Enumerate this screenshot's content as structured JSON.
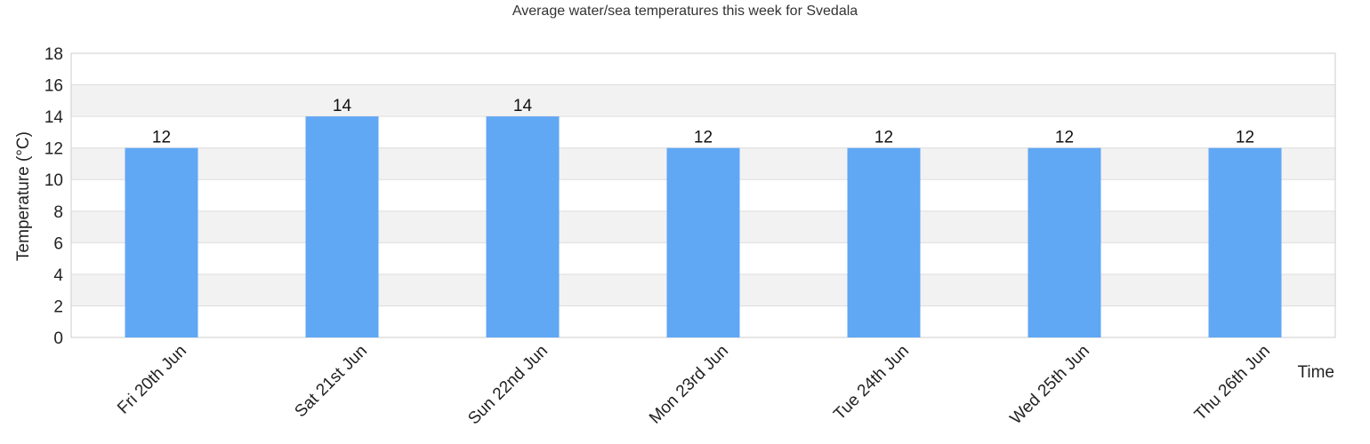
{
  "chart_data": {
    "type": "bar",
    "title": "Average water/sea temperatures this week for Svedala",
    "xlabel": "Time",
    "ylabel": "Temperature (°C)",
    "categories": [
      "Fri 20th Jun",
      "Sat 21st Jun",
      "Sun 22nd Jun",
      "Mon 23rd Jun",
      "Tue 24th Jun",
      "Wed 25th Jun",
      "Thu 26th Jun"
    ],
    "values": [
      12,
      14,
      14,
      12,
      12,
      12,
      12
    ],
    "data_labels": [
      "12",
      "14",
      "14",
      "12",
      "12",
      "12",
      "12"
    ],
    "ylim": [
      0,
      18
    ],
    "yticks": [
      0,
      2,
      4,
      6,
      8,
      10,
      12,
      14,
      16,
      18
    ],
    "grid": true,
    "alternating_bands": true,
    "legend": "none",
    "colors": {
      "bar": "#60a7f4",
      "band": "#f2f2f2",
      "grid": "#dddddd",
      "border": "#cccccc"
    }
  }
}
